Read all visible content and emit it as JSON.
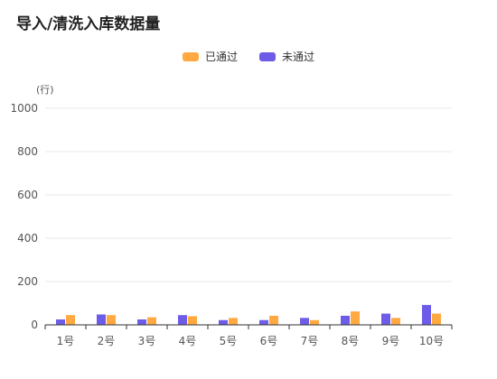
{
  "title": "导入/清洗入库数据量",
  "colors": {
    "passed": "#ffa940",
    "notPassed": "#6c5ce7",
    "grid": "#e8e8e8",
    "axis": "#333333",
    "text": "#555555"
  },
  "chart_data": {
    "type": "bar",
    "title": "导入/清洗入库数据量",
    "ylabel": "(行)",
    "xlabel": "",
    "ylim": [
      0,
      1000
    ],
    "yticks": [
      0,
      200,
      400,
      600,
      800,
      1000
    ],
    "grid": true,
    "legend_position": "top-center",
    "categories": [
      "1号",
      "2号",
      "3号",
      "4号",
      "5号",
      "6号",
      "7号",
      "8号",
      "9号",
      "10号"
    ],
    "series": [
      {
        "name": "未通过",
        "color": "#6c5ce7",
        "values": [
          25,
          48,
          25,
          45,
          22,
          22,
          32,
          42,
          52,
          92
        ]
      },
      {
        "name": "已通过",
        "color": "#ffa940",
        "values": [
          45,
          45,
          35,
          40,
          32,
          42,
          22,
          62,
          32,
          52
        ]
      }
    ]
  }
}
